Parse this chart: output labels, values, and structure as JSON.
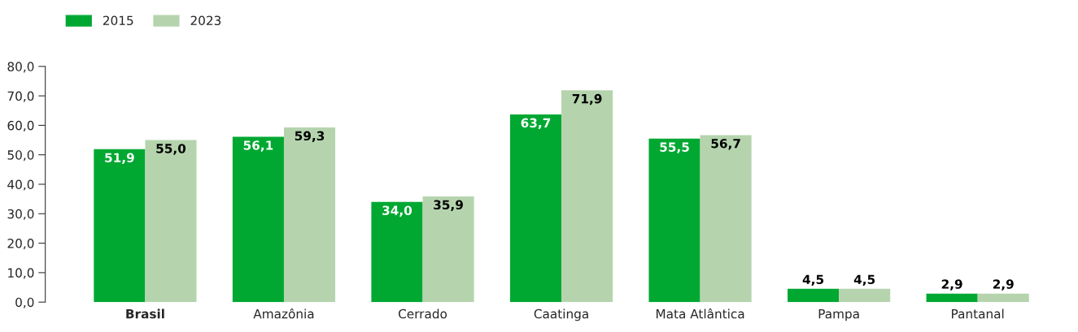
{
  "chart_data": {
    "type": "bar",
    "categories": [
      "Brasil",
      "Amazônia",
      "Cerrado",
      "Caatinga",
      "Mata Atlântica",
      "Pampa",
      "Pantanal"
    ],
    "series": [
      {
        "name": "2015",
        "color": "#00a832",
        "values": [
          51.9,
          56.1,
          34.0,
          63.7,
          55.5,
          4.5,
          2.9
        ],
        "value_labels": [
          "51,9",
          "56,1",
          "34,0",
          "63,7",
          "55,5",
          "4,5",
          "2,9"
        ]
      },
      {
        "name": "2023",
        "color": "#b5d4ae",
        "values": [
          55.0,
          59.3,
          35.9,
          71.9,
          56.7,
          4.5,
          2.9
        ],
        "value_labels": [
          "55,0",
          "59,3",
          "35,9",
          "71,9",
          "56,7",
          "4,5",
          "2,9"
        ]
      }
    ],
    "ylim": [
      0,
      80
    ],
    "yticks": [
      {
        "value": 0,
        "label": "0,0"
      },
      {
        "value": 10,
        "label": "10,0"
      },
      {
        "value": 20,
        "label": "20,0"
      },
      {
        "value": 30,
        "label": "30,0"
      },
      {
        "value": 40,
        "label": "40,0"
      },
      {
        "value": 50,
        "label": "50,0"
      },
      {
        "value": 60,
        "label": "60,0"
      },
      {
        "value": 70,
        "label": "70,0"
      },
      {
        "value": 80,
        "label": "80,0"
      }
    ],
    "grid": false,
    "legend": "top left"
  }
}
